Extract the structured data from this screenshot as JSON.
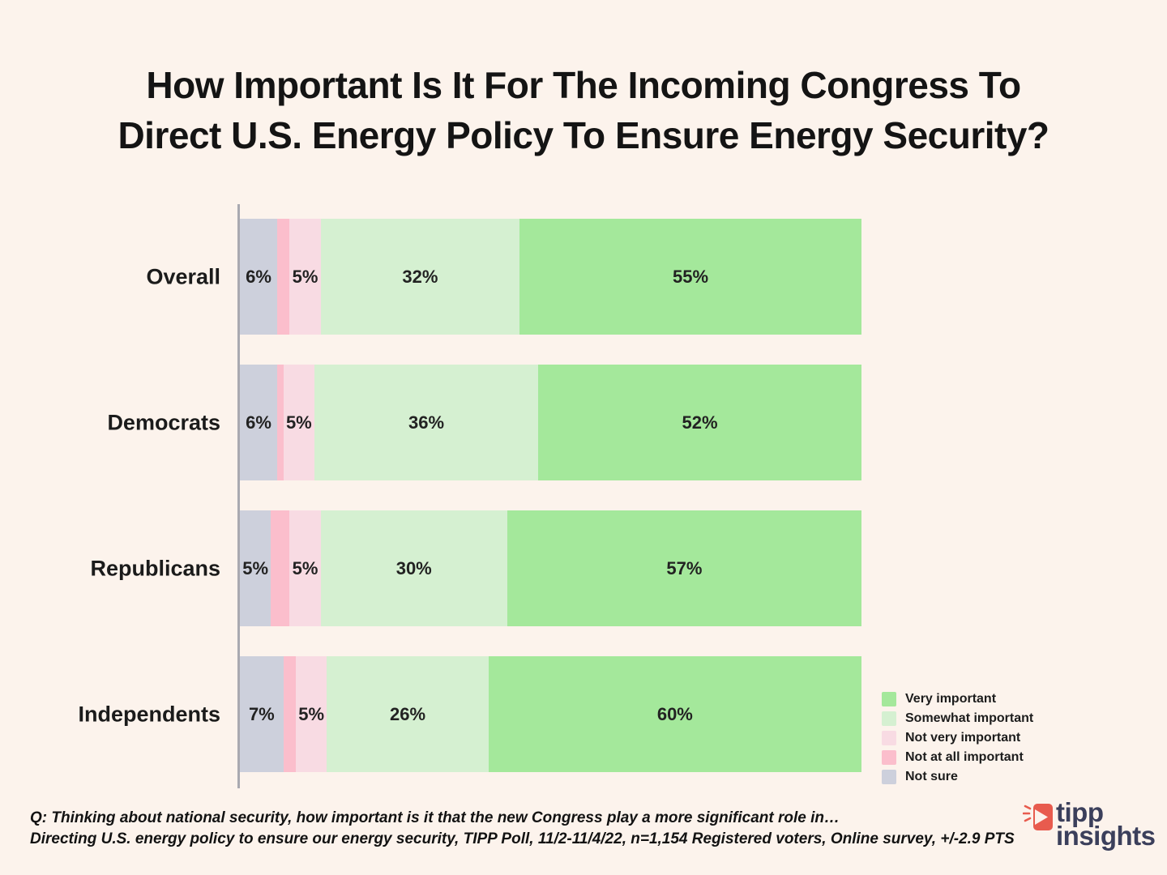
{
  "title_lines": [
    "How Important Is It For The Incoming Congress To",
    "Direct U.S. Energy Policy To Ensure Energy Security?"
  ],
  "chart_data": {
    "type": "bar",
    "orientation": "horizontal_stacked",
    "unit": "%",
    "xlim": [
      0,
      100
    ],
    "grid": false,
    "legend_position": "bottom-right",
    "categories": [
      "Overall",
      "Democrats",
      "Republicans",
      "Independents"
    ],
    "series": [
      {
        "name": "Not sure",
        "color": "#CDD0DC",
        "values": [
          6,
          6,
          5,
          7
        ]
      },
      {
        "name": "Not at all important",
        "color": "#FBBECC",
        "values": [
          2,
          1,
          3,
          2
        ]
      },
      {
        "name": "Not very important",
        "color": "#F8DBE3",
        "values": [
          5,
          5,
          5,
          5
        ]
      },
      {
        "name": "Somewhat important",
        "color": "#D5F0D1",
        "values": [
          32,
          36,
          30,
          26
        ]
      },
      {
        "name": "Very important",
        "color": "#A4E89B",
        "values": [
          55,
          52,
          57,
          60
        ]
      }
    ],
    "data_label_format": "{value}%",
    "data_label_min_value": 5
  },
  "legend": {
    "items": [
      {
        "label": "Very important",
        "color": "#A4E89B"
      },
      {
        "label": "Somewhat important",
        "color": "#D5F0D1"
      },
      {
        "label": "Not very important",
        "color": "#F8DBE3"
      },
      {
        "label": "Not at all important",
        "color": "#FBBECC"
      },
      {
        "label": "Not sure",
        "color": "#CDD0DC"
      }
    ]
  },
  "footer": {
    "line1": "Q: Thinking about national security, how important is it that the new Congress play a more significant role in…",
    "line2": "Directing U.S. energy policy to ensure our energy security, TIPP Poll, 11/2-11/4/22, n=1,154 Registered voters, Online survey, +/-2.9 PTS"
  },
  "logo": {
    "line1": "tipp",
    "line2": "insights",
    "accent_color": "#E85B4E",
    "text_color": "#3B3F5B"
  }
}
